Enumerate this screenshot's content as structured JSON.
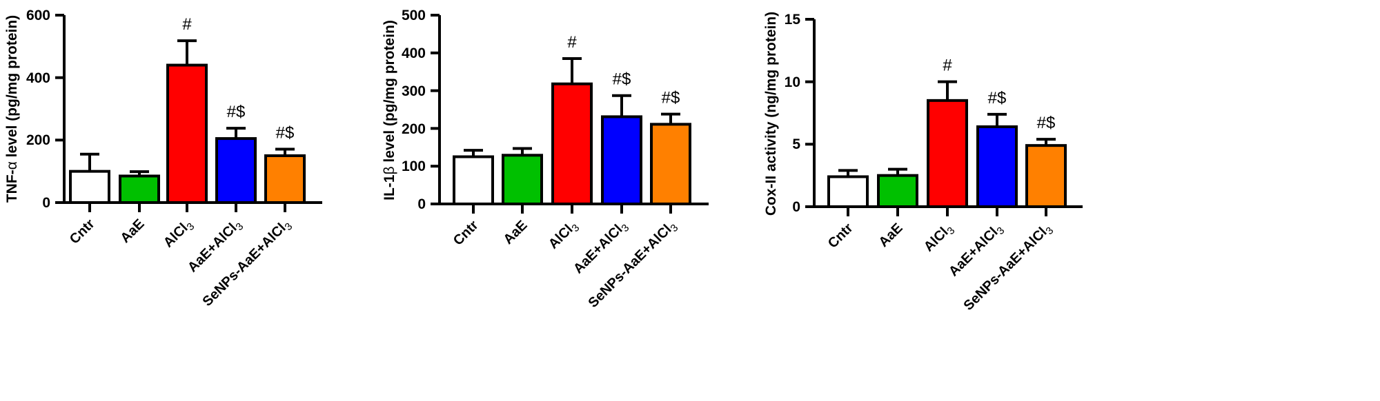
{
  "chart_data": [
    {
      "type": "bar",
      "title": "",
      "xlabel": "",
      "ylabel": "TNF-α level (pg/mg protein)",
      "ylim": [
        0,
        600
      ],
      "yticks": [
        0,
        200,
        400,
        600
      ],
      "grid": false,
      "categories": [
        "Cntr",
        "AaE",
        "AlCl3",
        "AaE+AlCl3",
        "SeNPs-AaE+AlCl3"
      ],
      "values": [
        100,
        85,
        440,
        205,
        150
      ],
      "error_upper": [
        155,
        99,
        518,
        238,
        171
      ],
      "colors": [
        "#ffffff",
        "#00c000",
        "#ff0000",
        "#0000ff",
        "#ff8000"
      ],
      "annotations": [
        "",
        "",
        "#",
        "#$",
        "#$"
      ]
    },
    {
      "type": "bar",
      "title": "",
      "xlabel": "",
      "ylabel": "IL-1β level (pg/mg protein)",
      "ylim": [
        0,
        500
      ],
      "yticks": [
        0,
        100,
        200,
        300,
        400,
        500
      ],
      "grid": false,
      "categories": [
        "Cntr",
        "AaE",
        "AlCl3",
        "AaE+AlCl3",
        "SeNPs-AaE+AlCl3"
      ],
      "values": [
        125,
        129,
        318,
        231,
        211
      ],
      "error_upper": [
        142,
        147,
        385,
        287,
        238
      ],
      "colors": [
        "#ffffff",
        "#00c000",
        "#ff0000",
        "#0000ff",
        "#ff8000"
      ],
      "annotations": [
        "",
        "",
        "#",
        "#$",
        "#$"
      ]
    },
    {
      "type": "bar",
      "title": "",
      "xlabel": "",
      "ylabel": "Cox-II activity (ng/mg protein)",
      "ylim": [
        0,
        15
      ],
      "yticks": [
        0,
        5,
        10,
        15
      ],
      "grid": false,
      "categories": [
        "Cntr",
        "AaE",
        "AlCl3",
        "AaE+AlCl3",
        "SeNPs-AaE+AlCl3"
      ],
      "values": [
        2.4,
        2.5,
        8.5,
        6.4,
        4.9
      ],
      "error_upper": [
        2.9,
        3.0,
        10.0,
        7.4,
        5.4
      ],
      "colors": [
        "#ffffff",
        "#00c000",
        "#ff0000",
        "#0000ff",
        "#ff8000"
      ],
      "annotations": [
        "",
        "",
        "#",
        "#$",
        "#$"
      ]
    }
  ],
  "panels": [
    {
      "ylabel_parts": [
        "TNF-",
        "α",
        " level (pg/mg protein)"
      ],
      "ytick_labels": [
        "0",
        "200",
        "400",
        "600"
      ],
      "categories": [
        {
          "main": "Cntr",
          "sub": ""
        },
        {
          "main": "AaE",
          "sub": ""
        },
        {
          "main": "AlCl",
          "sub": "3"
        },
        {
          "main": "AaE+AlCl",
          "sub": "3"
        },
        {
          "main": "SeNPs-AaE+AlCl",
          "sub": "3"
        }
      ],
      "annotations": [
        "",
        "",
        "#",
        "#$",
        "#$"
      ]
    },
    {
      "ylabel_parts": [
        "IL-1",
        "β",
        " level (pg/mg protein)"
      ],
      "ytick_labels": [
        "0",
        "100",
        "200",
        "300",
        "400",
        "500"
      ],
      "categories": [
        {
          "main": "Cntr",
          "sub": ""
        },
        {
          "main": "AaE",
          "sub": ""
        },
        {
          "main": "AlCl",
          "sub": "3"
        },
        {
          "main": "AaE+AlCl",
          "sub": "3"
        },
        {
          "main": "SeNPs-AaE+AlCl",
          "sub": "3"
        }
      ],
      "annotations": [
        "",
        "",
        "#",
        "#$",
        "#$"
      ]
    },
    {
      "ylabel_parts": [
        "Cox-II activity (ng/mg protein)",
        "",
        ""
      ],
      "ytick_labels": [
        "0",
        "5",
        "10",
        "15"
      ],
      "categories": [
        {
          "main": "Cntr",
          "sub": ""
        },
        {
          "main": "AaE",
          "sub": ""
        },
        {
          "main": "AlCl",
          "sub": "3"
        },
        {
          "main": "AaE+AlCl",
          "sub": "3"
        },
        {
          "main": "SeNPs-AaE+AlCl",
          "sub": "3"
        }
      ],
      "annotations": [
        "",
        "",
        "#",
        "#$",
        "#$"
      ]
    }
  ]
}
